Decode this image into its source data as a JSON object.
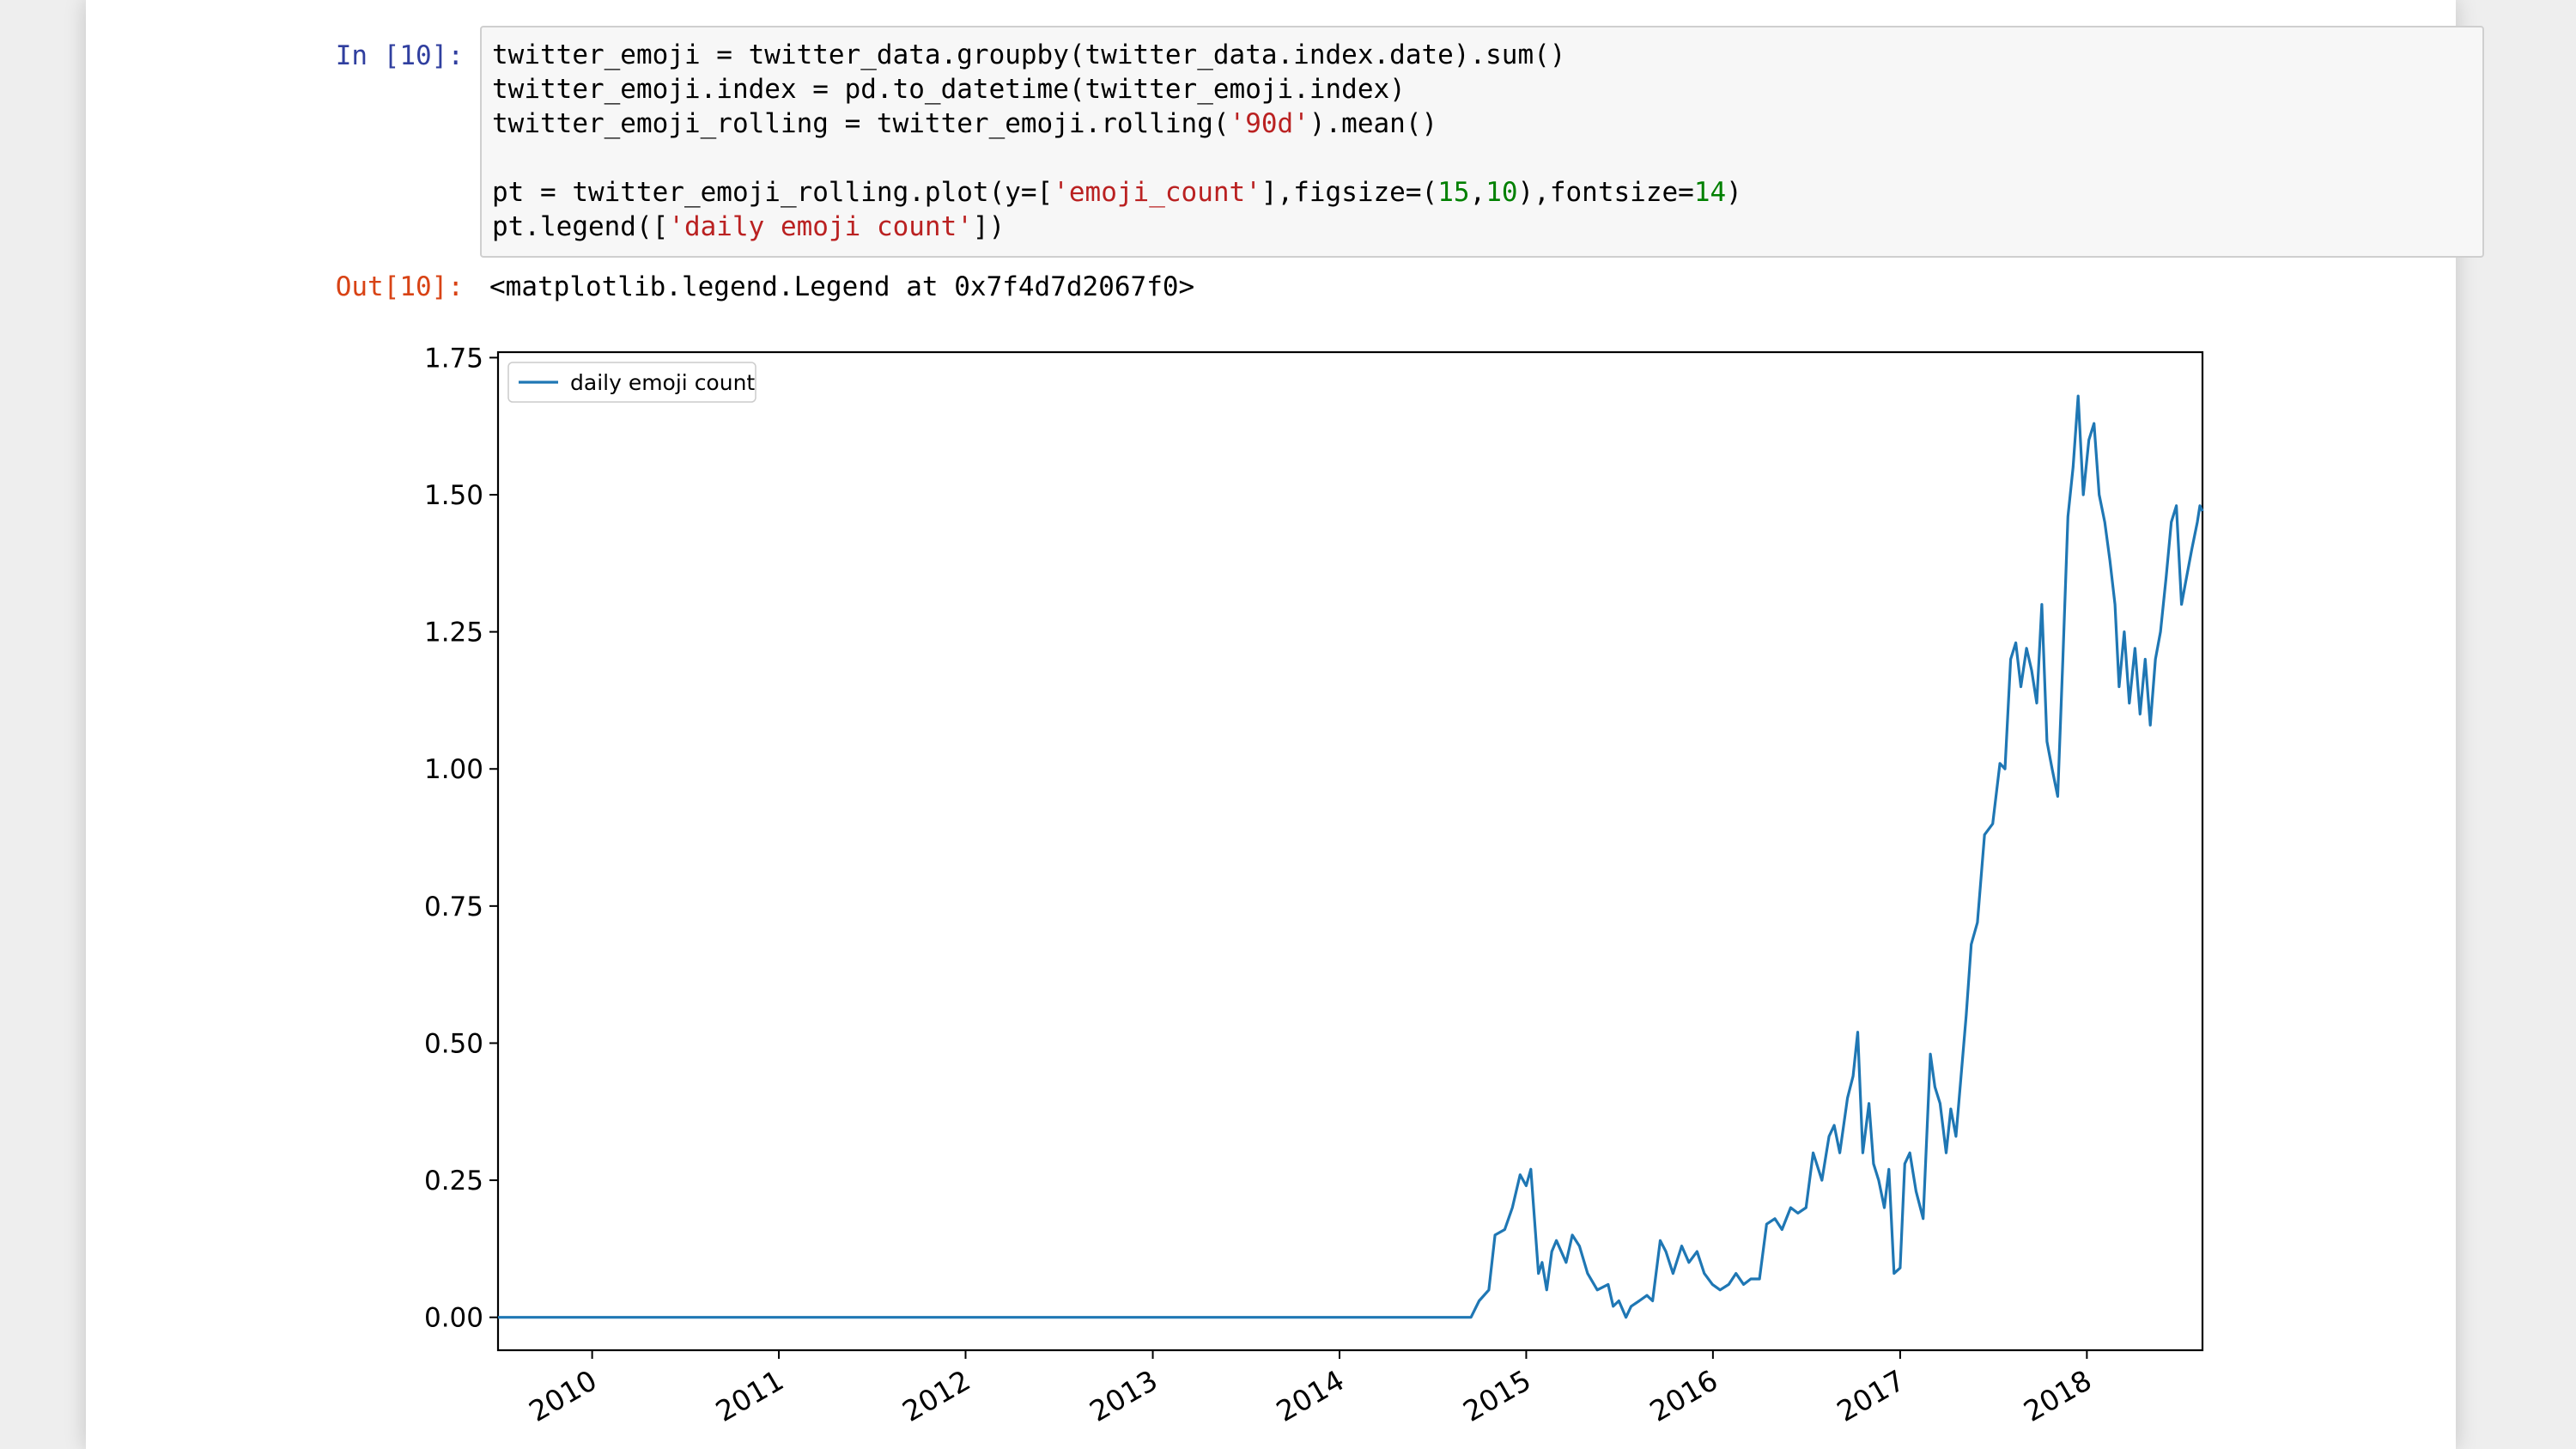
{
  "cell": {
    "in_prompt": "In [10]:",
    "out_prompt": "Out[10]:",
    "code": [
      [
        {
          "t": "twitter_emoji = twitter_data.groupby(twitter_data.index.date).sum()",
          "k": "plain"
        }
      ],
      [
        {
          "t": "twitter_emoji.index = pd.to_datetime(twitter_emoji.index)",
          "k": "plain"
        }
      ],
      [
        {
          "t": "twitter_emoji_rolling = twitter_emoji.rolling(",
          "k": "plain"
        },
        {
          "t": "'90d'",
          "k": "str"
        },
        {
          "t": ").mean()",
          "k": "plain"
        }
      ],
      [
        {
          "t": "",
          "k": "plain"
        }
      ],
      [
        {
          "t": "pt = twitter_emoji_rolling.plot(y=[",
          "k": "plain"
        },
        {
          "t": "'emoji_count'",
          "k": "str"
        },
        {
          "t": "],figsize=(",
          "k": "plain"
        },
        {
          "t": "15",
          "k": "num"
        },
        {
          "t": ",",
          "k": "plain"
        },
        {
          "t": "10",
          "k": "num"
        },
        {
          "t": "),fontsize=",
          "k": "plain"
        },
        {
          "t": "14",
          "k": "num"
        },
        {
          "t": ")",
          "k": "plain"
        }
      ],
      [
        {
          "t": "pt.legend([",
          "k": "plain"
        },
        {
          "t": "'daily emoji count'",
          "k": "str"
        },
        {
          "t": "])",
          "k": "plain"
        }
      ]
    ],
    "output_text": "<matplotlib.legend.Legend at 0x7f4d7d2067f0>"
  },
  "colors": {
    "line": "#1f77b4",
    "in_prompt": "#303f9f",
    "out_prompt": "#d84315",
    "string": "#ba2121",
    "number": "#008000"
  },
  "chart_data": {
    "type": "line",
    "title": "",
    "xlabel": "",
    "ylabel": "",
    "legend": {
      "entries": [
        "daily emoji count"
      ],
      "placement": "upper left"
    },
    "grid": false,
    "xlim": [
      "2009-07-01",
      "2018-08-15"
    ],
    "ylim": [
      -0.06,
      1.76
    ],
    "x_ticks": [
      "2010",
      "2011",
      "2012",
      "2013",
      "2014",
      "2015",
      "2016",
      "2017",
      "2018"
    ],
    "y_ticks": [
      "0.00",
      "0.25",
      "0.50",
      "0.75",
      "1.00",
      "1.25",
      "1.50",
      "1.75"
    ],
    "series": [
      {
        "name": "daily emoji count",
        "x": [
          "2009-07-01",
          "2014-09-15",
          "2014-10-01",
          "2014-10-20",
          "2014-11-01",
          "2014-11-20",
          "2014-12-05",
          "2014-12-20",
          "2015-01-01",
          "2015-01-10",
          "2015-01-25",
          "2015-02-01",
          "2015-02-10",
          "2015-02-20",
          "2015-03-01",
          "2015-03-20",
          "2015-04-01",
          "2015-04-15",
          "2015-05-01",
          "2015-05-20",
          "2015-06-10",
          "2015-06-20",
          "2015-07-01",
          "2015-07-15",
          "2015-07-25",
          "2015-08-10",
          "2015-08-25",
          "2015-09-05",
          "2015-09-20",
          "2015-10-01",
          "2015-10-15",
          "2015-11-01",
          "2015-11-15",
          "2015-12-01",
          "2015-12-15",
          "2015-12-31",
          "2016-01-15",
          "2016-02-01",
          "2016-02-15",
          "2016-03-01",
          "2016-03-15",
          "2016-04-01",
          "2016-04-15",
          "2016-05-01",
          "2016-05-15",
          "2016-06-01",
          "2016-06-15",
          "2016-07-01",
          "2016-07-15",
          "2016-08-01",
          "2016-08-15",
          "2016-08-25",
          "2016-09-05",
          "2016-09-20",
          "2016-10-01",
          "2016-10-10",
          "2016-10-20",
          "2016-11-01",
          "2016-11-10",
          "2016-11-20",
          "2016-12-01",
          "2016-12-10",
          "2016-12-20",
          "2017-01-01",
          "2017-01-10",
          "2017-01-20",
          "2017-02-01",
          "2017-02-15",
          "2017-03-01",
          "2017-03-10",
          "2017-03-20",
          "2017-04-01",
          "2017-04-10",
          "2017-04-20",
          "2017-05-01",
          "2017-05-10",
          "2017-05-20",
          "2017-06-01",
          "2017-06-15",
          "2017-07-01",
          "2017-07-15",
          "2017-07-25",
          "2017-08-05",
          "2017-08-15",
          "2017-08-25",
          "2017-09-05",
          "2017-09-15",
          "2017-09-25",
          "2017-10-05",
          "2017-10-15",
          "2017-10-25",
          "2017-11-05",
          "2017-11-15",
          "2017-11-25",
          "2017-12-05",
          "2017-12-15",
          "2017-12-25",
          "2018-01-05",
          "2018-01-15",
          "2018-01-25",
          "2018-02-05",
          "2018-02-15",
          "2018-02-25",
          "2018-03-05",
          "2018-03-15",
          "2018-03-25",
          "2018-04-05",
          "2018-04-15",
          "2018-04-25",
          "2018-05-05",
          "2018-05-15",
          "2018-05-25",
          "2018-06-05",
          "2018-06-15",
          "2018-06-25",
          "2018-07-05",
          "2018-07-15",
          "2018-07-25",
          "2018-08-05",
          "2018-08-10",
          "2018-08-15"
        ],
        "y": [
          0.0,
          0.0,
          0.03,
          0.05,
          0.15,
          0.16,
          0.2,
          0.26,
          0.24,
          0.27,
          0.08,
          0.1,
          0.05,
          0.12,
          0.14,
          0.1,
          0.15,
          0.13,
          0.08,
          0.05,
          0.06,
          0.02,
          0.03,
          0.0,
          0.02,
          0.03,
          0.04,
          0.03,
          0.14,
          0.12,
          0.08,
          0.13,
          0.1,
          0.12,
          0.08,
          0.06,
          0.05,
          0.06,
          0.08,
          0.06,
          0.07,
          0.07,
          0.17,
          0.18,
          0.16,
          0.2,
          0.19,
          0.2,
          0.3,
          0.25,
          0.33,
          0.35,
          0.3,
          0.4,
          0.44,
          0.52,
          0.3,
          0.39,
          0.28,
          0.25,
          0.2,
          0.27,
          0.08,
          0.09,
          0.28,
          0.3,
          0.23,
          0.18,
          0.48,
          0.42,
          0.39,
          0.3,
          0.38,
          0.33,
          0.45,
          0.55,
          0.68,
          0.72,
          0.88,
          0.9,
          1.01,
          1.0,
          1.2,
          1.23,
          1.15,
          1.22,
          1.18,
          1.12,
          1.3,
          1.05,
          1.0,
          0.95,
          1.2,
          1.46,
          1.55,
          1.68,
          1.5,
          1.6,
          1.63,
          1.5,
          1.45,
          1.38,
          1.3,
          1.15,
          1.25,
          1.12,
          1.22,
          1.1,
          1.2,
          1.08,
          1.2,
          1.25,
          1.35,
          1.45,
          1.48,
          1.3,
          1.35,
          1.4,
          1.45,
          1.48,
          1.47
        ]
      }
    ]
  }
}
